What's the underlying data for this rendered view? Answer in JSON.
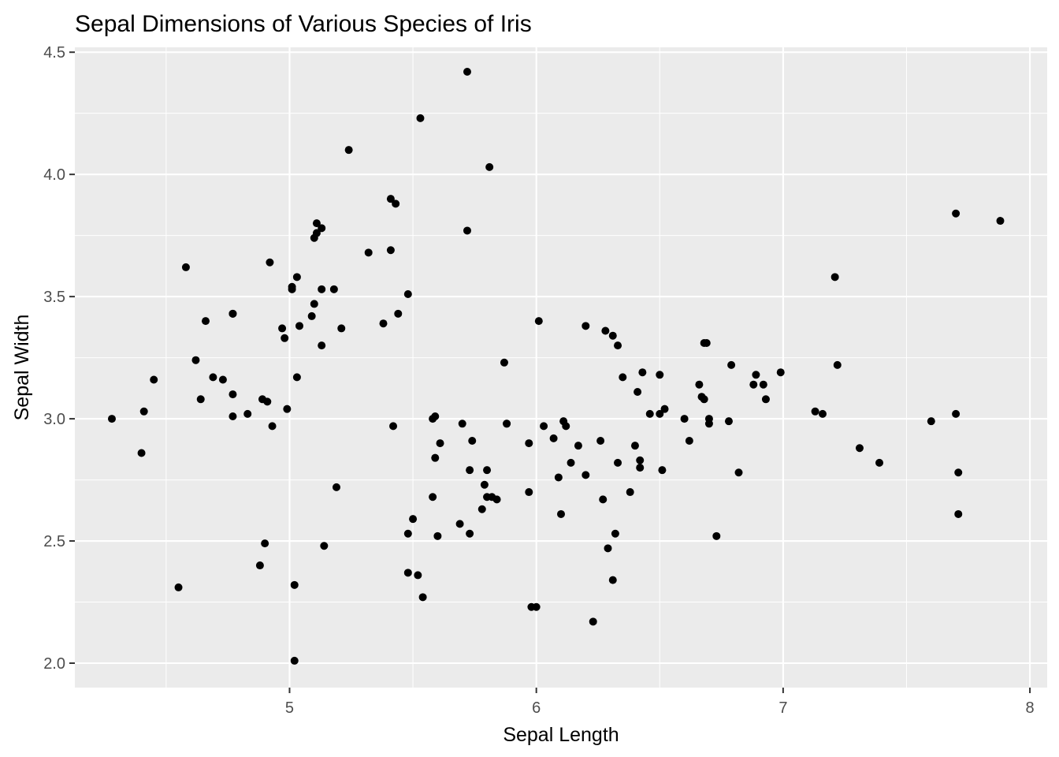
{
  "chart_data": {
    "type": "scatter",
    "title": "Sepal Dimensions of Various Species of Iris",
    "xlabel": "Sepal Length",
    "ylabel": "Sepal Width",
    "xlim": [
      4.13,
      8.07
    ],
    "ylim": [
      1.9,
      4.52
    ],
    "x_ticks": [
      5,
      6,
      7,
      8
    ],
    "y_ticks": [
      2.0,
      2.5,
      3.0,
      3.5,
      4.0,
      4.5
    ],
    "x_tick_labels": [
      "5",
      "6",
      "7",
      "8"
    ],
    "y_tick_labels": [
      "2.0",
      "2.5",
      "3.0",
      "3.5",
      "4.0",
      "4.5"
    ],
    "points": [
      [
        4.28,
        3.0
      ],
      [
        4.4,
        2.86
      ],
      [
        4.41,
        3.03
      ],
      [
        4.45,
        3.16
      ],
      [
        4.55,
        2.31
      ],
      [
        4.58,
        3.62
      ],
      [
        4.62,
        3.24
      ],
      [
        4.64,
        3.08
      ],
      [
        4.66,
        3.4
      ],
      [
        4.69,
        3.17
      ],
      [
        4.73,
        3.16
      ],
      [
        4.77,
        3.43
      ],
      [
        4.77,
        3.43
      ],
      [
        4.77,
        3.1
      ],
      [
        4.77,
        3.01
      ],
      [
        4.83,
        3.02
      ],
      [
        4.88,
        2.4
      ],
      [
        4.89,
        3.08
      ],
      [
        4.9,
        2.49
      ],
      [
        4.91,
        3.07
      ],
      [
        4.92,
        3.64
      ],
      [
        4.93,
        2.97
      ],
      [
        4.97,
        3.37
      ],
      [
        4.98,
        3.33
      ],
      [
        4.99,
        3.04
      ],
      [
        5.01,
        3.54
      ],
      [
        5.01,
        3.53
      ],
      [
        5.02,
        2.32
      ],
      [
        5.02,
        2.01
      ],
      [
        5.03,
        3.58
      ],
      [
        5.03,
        3.17
      ],
      [
        5.04,
        3.38
      ],
      [
        5.09,
        3.42
      ],
      [
        5.1,
        3.74
      ],
      [
        5.1,
        3.47
      ],
      [
        5.11,
        3.76
      ],
      [
        5.11,
        3.8
      ],
      [
        5.13,
        3.78
      ],
      [
        5.13,
        3.53
      ],
      [
        5.13,
        3.3
      ],
      [
        5.14,
        2.48
      ],
      [
        5.18,
        3.53
      ],
      [
        5.19,
        2.72
      ],
      [
        5.21,
        3.37
      ],
      [
        5.24,
        4.1
      ],
      [
        5.32,
        3.68
      ],
      [
        5.38,
        3.39
      ],
      [
        5.41,
        3.69
      ],
      [
        5.41,
        3.9
      ],
      [
        5.42,
        2.97
      ],
      [
        5.43,
        3.88
      ],
      [
        5.44,
        3.43
      ],
      [
        5.48,
        2.53
      ],
      [
        5.48,
        2.37
      ],
      [
        5.48,
        3.51
      ],
      [
        5.5,
        2.59
      ],
      [
        5.52,
        2.36
      ],
      [
        5.53,
        4.23
      ],
      [
        5.54,
        2.27
      ],
      [
        5.58,
        2.68
      ],
      [
        5.58,
        3.0
      ],
      [
        5.59,
        3.01
      ],
      [
        5.59,
        2.84
      ],
      [
        5.6,
        2.52
      ],
      [
        5.61,
        2.9
      ],
      [
        5.69,
        2.57
      ],
      [
        5.7,
        2.98
      ],
      [
        5.72,
        4.42
      ],
      [
        5.72,
        3.77
      ],
      [
        5.73,
        2.79
      ],
      [
        5.73,
        2.53
      ],
      [
        5.74,
        2.91
      ],
      [
        5.78,
        2.63
      ],
      [
        5.79,
        2.73
      ],
      [
        5.8,
        2.79
      ],
      [
        5.8,
        2.68
      ],
      [
        5.81,
        4.03
      ],
      [
        5.82,
        2.68
      ],
      [
        5.84,
        2.67
      ],
      [
        5.87,
        3.23
      ],
      [
        5.88,
        2.98
      ],
      [
        5.88,
        2.98
      ],
      [
        5.97,
        2.7
      ],
      [
        5.97,
        2.9
      ],
      [
        5.98,
        2.23
      ],
      [
        6.0,
        2.23
      ],
      [
        6.01,
        3.4
      ],
      [
        6.03,
        2.97
      ],
      [
        6.07,
        2.92
      ],
      [
        6.09,
        2.76
      ],
      [
        6.1,
        2.61
      ],
      [
        6.11,
        2.99
      ],
      [
        6.12,
        2.97
      ],
      [
        6.14,
        2.82
      ],
      [
        6.17,
        2.89
      ],
      [
        6.2,
        2.77
      ],
      [
        6.2,
        3.38
      ],
      [
        6.23,
        2.17
      ],
      [
        6.26,
        2.91
      ],
      [
        6.27,
        2.67
      ],
      [
        6.28,
        3.36
      ],
      [
        6.29,
        2.47
      ],
      [
        6.31,
        2.34
      ],
      [
        6.31,
        3.34
      ],
      [
        6.32,
        2.53
      ],
      [
        6.33,
        3.3
      ],
      [
        6.33,
        2.82
      ],
      [
        6.35,
        3.17
      ],
      [
        6.38,
        2.7
      ],
      [
        6.4,
        2.89
      ],
      [
        6.41,
        3.11
      ],
      [
        6.42,
        2.8
      ],
      [
        6.42,
        2.83
      ],
      [
        6.43,
        3.19
      ],
      [
        6.46,
        3.02
      ],
      [
        6.5,
        3.18
      ],
      [
        6.5,
        3.02
      ],
      [
        6.51,
        2.79
      ],
      [
        6.52,
        3.04
      ],
      [
        6.6,
        3.0
      ],
      [
        6.62,
        2.91
      ],
      [
        6.66,
        3.14
      ],
      [
        6.67,
        3.09
      ],
      [
        6.68,
        3.31
      ],
      [
        6.68,
        3.08
      ],
      [
        6.69,
        3.31
      ],
      [
        6.7,
        2.98
      ],
      [
        6.7,
        3.0
      ],
      [
        6.73,
        2.52
      ],
      [
        6.78,
        2.99
      ],
      [
        6.79,
        3.22
      ],
      [
        6.82,
        2.78
      ],
      [
        6.88,
        3.14
      ],
      [
        6.89,
        3.18
      ],
      [
        6.92,
        3.14
      ],
      [
        6.93,
        3.08
      ],
      [
        6.99,
        3.19
      ],
      [
        7.13,
        3.03
      ],
      [
        7.16,
        3.02
      ],
      [
        7.21,
        3.58
      ],
      [
        7.22,
        3.22
      ],
      [
        7.31,
        2.88
      ],
      [
        7.39,
        2.82
      ],
      [
        7.6,
        2.99
      ],
      [
        7.7,
        3.84
      ],
      [
        7.7,
        3.02
      ],
      [
        7.71,
        2.61
      ],
      [
        7.71,
        2.78
      ],
      [
        7.88,
        3.81
      ]
    ]
  }
}
